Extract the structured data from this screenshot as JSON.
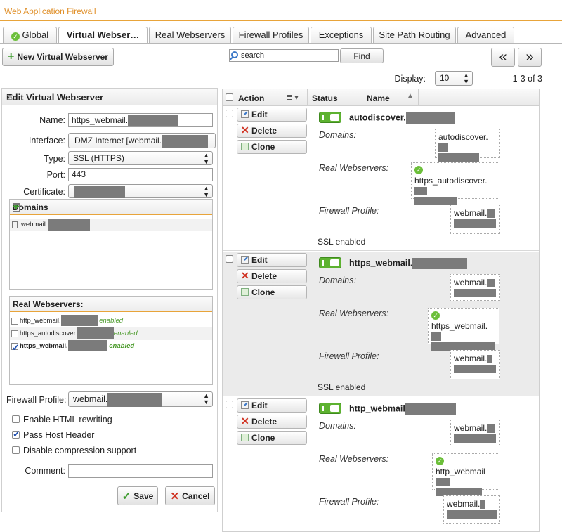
{
  "app": {
    "title": "Web Application Firewall"
  },
  "tabs": [
    {
      "label": "Global"
    },
    {
      "label": "Virtual Webser…"
    },
    {
      "label": "Real Webservers"
    },
    {
      "label": "Firewall Profiles"
    },
    {
      "label": "Exceptions"
    },
    {
      "label": "Site Path Routing"
    },
    {
      "label": "Advanced"
    }
  ],
  "toolbar": {
    "new_label": "New Virtual Webserver",
    "search_placeholder": "search",
    "find_label": "Find",
    "prev_label": "«",
    "next_label": "»",
    "display_label": "Display:",
    "display_value": "10",
    "range": "1-3 of 3"
  },
  "edit_panel": {
    "title": "Edit Virtual Webserver",
    "name_label": "Name:",
    "name_value": "https_webmail.",
    "interface_label": "Interface:",
    "interface_value": "DMZ Internet [webmail.",
    "type_label": "Type:",
    "type_value": "SSL (HTTPS)",
    "port_label": "Port:",
    "port_value": "443",
    "certificate_label": "Certificate:",
    "domains_title": "Domains",
    "domains": [
      "webmail."
    ],
    "real_webservers_title": "Real Webservers:",
    "real_webservers": [
      {
        "name": "http_webmail.",
        "status": "enabled",
        "checked": false
      },
      {
        "name": "https_autodiscover.",
        "status": "enabled",
        "checked": false
      },
      {
        "name": "https_webmail.",
        "status": "enabled",
        "checked": true
      }
    ],
    "firewall_profile_label": "Firewall Profile:",
    "firewall_profile_value": "webmail.",
    "opt_html_rewriting": "Enable HTML rewriting",
    "opt_pass_host_header": "Pass Host Header",
    "opt_disable_compression": "Disable compression support",
    "comment_label": "Comment:",
    "save_label": "Save",
    "cancel_label": "Cancel"
  },
  "list": {
    "col_action": "Action",
    "col_status": "Status",
    "col_name": "Name",
    "edit_label": "Edit",
    "delete_label": "Delete",
    "clone_label": "Clone",
    "domains_label": "Domains:",
    "real_label": "Real Webservers:",
    "fw_label": "Firewall Profile:",
    "entries": [
      {
        "name": "autodiscover.",
        "domain": "autodiscover.",
        "real": "https_autodiscover.",
        "fw": "webmail.",
        "ssl": "SSL enabled"
      },
      {
        "name": "https_webmail.",
        "domain": "webmail.",
        "real": "https_webmail.",
        "fw": "webmail.",
        "ssl": "SSL enabled"
      },
      {
        "name": "http_webmail",
        "domain": "webmail.",
        "real": "http_webmail",
        "fw": "webmail.",
        "ssl": ""
      }
    ]
  },
  "colors": {
    "accent": "#e8a43a",
    "enabled": "#5db230",
    "delete": "#d03020"
  }
}
